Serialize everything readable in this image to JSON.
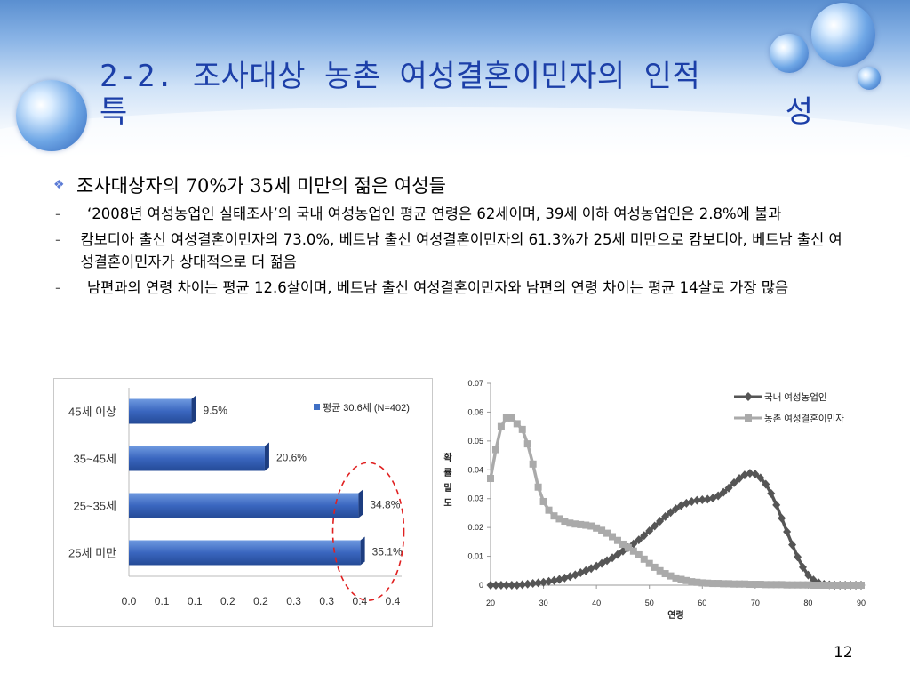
{
  "slide": {
    "title_line1": "2-2. 조사대상 농촌 여성결혼이민자의 인적",
    "title_line2_left": "특",
    "title_line2_right": "성",
    "main_bullet": "조사대상자의 70%가 35세 미만의 젊은 여성들",
    "sub_bullets": [
      "‘2008년 여성농업인 실태조사’의 국내 여성농업인 평균 연령은 62세이며, 39세 이하 여성농업인은 2.8%에 불과",
      "캄보디아 출신 여성결혼이민자의 73.0%, 베트남 출신 여성결혼이민자의 61.3%가 25세 미만으로 캄보디아, 베트남 출신 여성결혼이민자가 상대적으로 더 젊음",
      "남편과의 연령 차이는 평균 12.6살이며, 베트남 출신 여성결혼이민자와 남편의 연령 차이는 평균 14살로 가장 많음"
    ],
    "page_number": "12",
    "title_color": "#1c3fa8"
  },
  "chart_data": [
    {
      "type": "bar",
      "orientation": "horizontal",
      "categories": [
        "45세 이상",
        "35~45세",
        "25~35세",
        "25세 미만"
      ],
      "values": [
        0.095,
        0.206,
        0.348,
        0.351
      ],
      "value_labels": [
        "9.5%",
        "20.6%",
        "34.8%",
        "35.1%"
      ],
      "series": [
        {
          "name": "평균 30.6세 (N=402)",
          "color": "#3f6fc4"
        }
      ],
      "x_tick_labels": [
        "0.0",
        "0.1",
        "0.1",
        "0.2",
        "0.2",
        "0.3",
        "0.3",
        "0.4",
        "0.4"
      ],
      "xlim": [
        0,
        0.4
      ],
      "legend_position": "top-right",
      "annotation": "red dashed circle around 25~35세 and 25세 미만 bars",
      "annotation_color": "#e02020"
    },
    {
      "type": "line",
      "x": [
        20,
        21,
        22,
        23,
        24,
        25,
        26,
        27,
        28,
        29,
        30,
        31,
        32,
        33,
        34,
        35,
        36,
        37,
        38,
        39,
        40,
        41,
        42,
        43,
        44,
        45,
        46,
        47,
        48,
        49,
        50,
        51,
        52,
        53,
        54,
        55,
        56,
        57,
        58,
        59,
        60,
        61,
        62,
        63,
        64,
        65,
        66,
        67,
        68,
        69,
        70,
        71,
        72,
        73,
        74,
        75,
        76,
        77,
        78,
        79,
        80,
        81,
        82,
        83,
        84,
        85,
        86,
        87,
        88,
        89,
        90
      ],
      "series": [
        {
          "name": "국내 여성농업인",
          "color": "#555555",
          "marker": "diamond",
          "values": [
            0,
            0,
            0,
            0,
            0,
            0,
            0.0002,
            0.0004,
            0.0006,
            0.0008,
            0.001,
            0.0013,
            0.0016,
            0.002,
            0.0025,
            0.003,
            0.0036,
            0.0043,
            0.005,
            0.0058,
            0.0066,
            0.0075,
            0.0085,
            0.0095,
            0.0106,
            0.0118,
            0.013,
            0.0143,
            0.0157,
            0.0172,
            0.0188,
            0.0205,
            0.0222,
            0.0238,
            0.0252,
            0.0265,
            0.0276,
            0.0284,
            0.029,
            0.0294,
            0.0296,
            0.0298,
            0.0302,
            0.031,
            0.0322,
            0.0337,
            0.0355,
            0.037,
            0.0382,
            0.0388,
            0.0385,
            0.0372,
            0.035,
            0.0318,
            0.0278,
            0.0232,
            0.0185,
            0.014,
            0.0098,
            0.0062,
            0.0035,
            0.0018,
            0.0008,
            0.0003,
            0.0001,
            0,
            0,
            0,
            0,
            0,
            0
          ]
        },
        {
          "name": "농촌 여성결혼이민자",
          "color": "#aaaaaa",
          "marker": "square",
          "values": [
            0.037,
            0.047,
            0.055,
            0.058,
            0.058,
            0.056,
            0.054,
            0.049,
            0.042,
            0.034,
            0.029,
            0.026,
            0.024,
            0.023,
            0.0222,
            0.0215,
            0.0212,
            0.021,
            0.0208,
            0.0205,
            0.0198,
            0.019,
            0.018,
            0.0168,
            0.0155,
            0.0142,
            0.013,
            0.0118,
            0.0105,
            0.009,
            0.0075,
            0.0062,
            0.005,
            0.004,
            0.0032,
            0.0025,
            0.002,
            0.0016,
            0.0012,
            0.001,
            0.0008,
            0.0007,
            0.0006,
            0.0006,
            0.0005,
            0.0005,
            0.0004,
            0.0004,
            0.0004,
            0.0003,
            0.0003,
            0.0003,
            0.0002,
            0.0002,
            0.0002,
            0.0002,
            0.0001,
            0.0001,
            0.0001,
            0.0001,
            0.0001,
            0,
            0,
            0,
            0,
            0,
            0,
            0,
            0,
            0,
            0
          ]
        }
      ],
      "xlim": [
        20,
        90
      ],
      "ylim": [
        0,
        0.07
      ],
      "x_ticks": [
        20,
        30,
        40,
        50,
        60,
        70,
        80,
        90
      ],
      "y_ticks": [
        0,
        0.01,
        0.02,
        0.03,
        0.04,
        0.05,
        0.06,
        0.07
      ],
      "y_tick_labels": [
        "0",
        "0.01",
        "0.02",
        "0.03",
        "0.04",
        "0.05",
        "0.06",
        "0.07"
      ],
      "xlabel": "연령",
      "ylabel": "확률밀도",
      "legend_position": "top-right"
    }
  ]
}
